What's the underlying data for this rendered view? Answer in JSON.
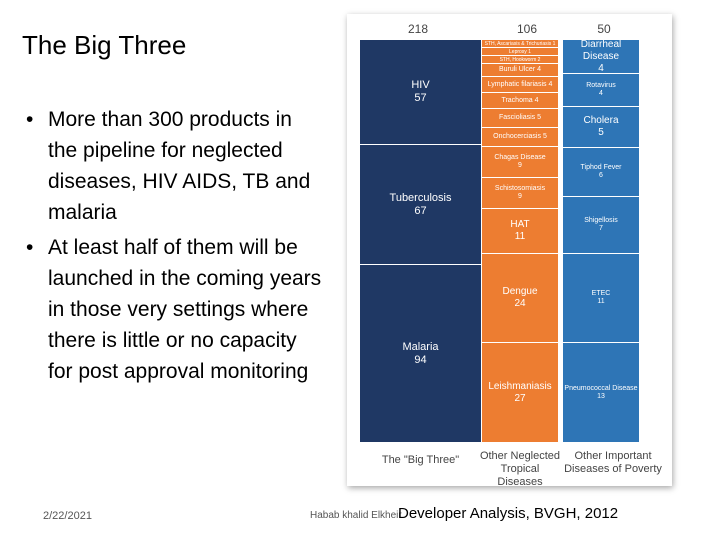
{
  "slide": {
    "title": "The Big Three",
    "bullets": [
      "More than 300 products in the pipeline for neglected diseases, HIV AIDS, TB and malaria",
      "At least half of them will be launched in the coming years in those very settings where there is little or no capacity for post approval monitoring"
    ],
    "bullet_glyph": "•",
    "footer": {
      "date": "2/22/2021",
      "author": "Habab khalid Elkheir",
      "source": "Developer Analysis, BVGH, 2012"
    }
  },
  "chart_data": {
    "type": "table",
    "columns": [
      {
        "total": "218",
        "label": "The \"Big Three\"",
        "color": "#1f3864",
        "items": [
          {
            "name": "HIV",
            "value": "57"
          },
          {
            "name": "Tuberculosis",
            "value": "67"
          },
          {
            "name": "Malaria",
            "value": "94"
          }
        ]
      },
      {
        "total": "106",
        "label": "Other Neglected Tropical Diseases",
        "color": "#ed7d31",
        "items": [
          {
            "name": "STH, Ascariasis & Trichuriasis",
            "value": "1"
          },
          {
            "name": "Leprosy",
            "value": "1"
          },
          {
            "name": "STH, Hookworm",
            "value": "2"
          },
          {
            "name": "Buruli Ulcer",
            "value": "4"
          },
          {
            "name": "Lymphatic filariasis",
            "value": "4"
          },
          {
            "name": "Trachoma",
            "value": "4"
          },
          {
            "name": "Fascioliasis",
            "value": "5"
          },
          {
            "name": "Onchocerciasis",
            "value": "5"
          },
          {
            "name": "Chagas Disease",
            "value": "9"
          },
          {
            "name": "Schistosomiasis",
            "value": "9"
          },
          {
            "name": "HAT",
            "value": "11"
          },
          {
            "name": "Dengue",
            "value": "24"
          },
          {
            "name": "Leishmaniasis",
            "value": "27"
          }
        ]
      },
      {
        "total": "50",
        "label": "Other Important Diseases of Poverty",
        "color": "#2e75b6",
        "items": [
          {
            "name": "Diarrheal Disease",
            "value": "4"
          },
          {
            "name": "Rotavirus",
            "value": "4"
          },
          {
            "name": "Cholera",
            "value": "5"
          },
          {
            "name": "Tiphod Fever",
            "value": "6"
          },
          {
            "name": "Shigellosis",
            "value": "7"
          },
          {
            "name": "ETEC",
            "value": "11"
          },
          {
            "name": "Pneumococcal Disease",
            "value": "13"
          }
        ]
      }
    ]
  }
}
